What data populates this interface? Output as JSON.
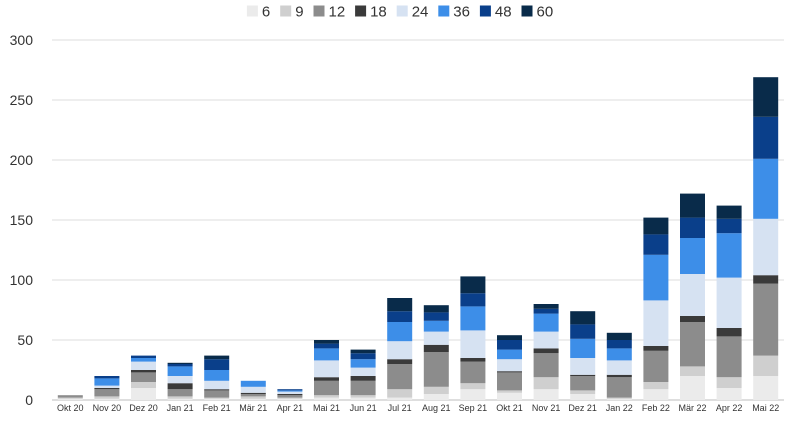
{
  "chart_data": {
    "type": "bar",
    "stacked": true,
    "categories": [
      "Okt 20",
      "Nov 20",
      "Dez 20",
      "Jan 21",
      "Feb 21",
      "Mär 21",
      "Apr 21",
      "Mai 21",
      "Jun 21",
      "Jul 21",
      "Aug 21",
      "Sep 21",
      "Okt 21",
      "Nov 21",
      "Dez 21",
      "Jan 22",
      "Feb 22",
      "Mär 22",
      "Apr 22",
      "Mai 22"
    ],
    "series": [
      {
        "name": "6",
        "color": "#ebebeb",
        "values": [
          1,
          1,
          10,
          1,
          1,
          1,
          1,
          2,
          2,
          2,
          5,
          9,
          6,
          9,
          5,
          1,
          9,
          20,
          10,
          20
        ]
      },
      {
        "name": "9",
        "color": "#cfcfcf",
        "values": [
          1,
          2,
          5,
          2,
          1,
          2,
          1,
          2,
          2,
          7,
          6,
          5,
          2,
          10,
          3,
          1,
          6,
          8,
          9,
          17
        ]
      },
      {
        "name": "12",
        "color": "#8c8c8c",
        "values": [
          2,
          6,
          8,
          6,
          6,
          2,
          2,
          12,
          12,
          21,
          29,
          18,
          15,
          20,
          12,
          17,
          26,
          37,
          34,
          60
        ]
      },
      {
        "name": "18",
        "color": "#3a3a3a",
        "values": [
          0,
          1,
          2,
          5,
          1,
          1,
          1,
          3,
          4,
          4,
          6,
          3,
          1,
          4,
          1,
          2,
          4,
          5,
          7,
          7
        ]
      },
      {
        "name": "24",
        "color": "#d6e2f2",
        "values": [
          0,
          2,
          7,
          6,
          7,
          5,
          2,
          14,
          7,
          15,
          11,
          23,
          10,
          14,
          14,
          12,
          38,
          35,
          42,
          47
        ]
      },
      {
        "name": "36",
        "color": "#3d8ee8",
        "values": [
          0,
          6,
          3,
          8,
          9,
          5,
          1,
          10,
          7,
          16,
          9,
          20,
          8,
          15,
          16,
          10,
          38,
          30,
          37,
          50
        ]
      },
      {
        "name": "48",
        "color": "#0a3f8a",
        "values": [
          0,
          2,
          2,
          2,
          9,
          0,
          1,
          4,
          5,
          9,
          7,
          11,
          8,
          4,
          12,
          7,
          17,
          17,
          12,
          35
        ]
      },
      {
        "name": "60",
        "color": "#092b4a",
        "values": [
          0,
          0,
          0,
          1,
          3,
          0,
          0,
          3,
          3,
          11,
          6,
          14,
          4,
          4,
          11,
          6,
          14,
          20,
          11,
          33
        ]
      }
    ],
    "xlabel": "",
    "ylabel": "",
    "ylim": [
      0,
      300
    ],
    "yticks": [
      0,
      50,
      100,
      150,
      200,
      250,
      300
    ],
    "grid": true,
    "legend": "top-center"
  }
}
